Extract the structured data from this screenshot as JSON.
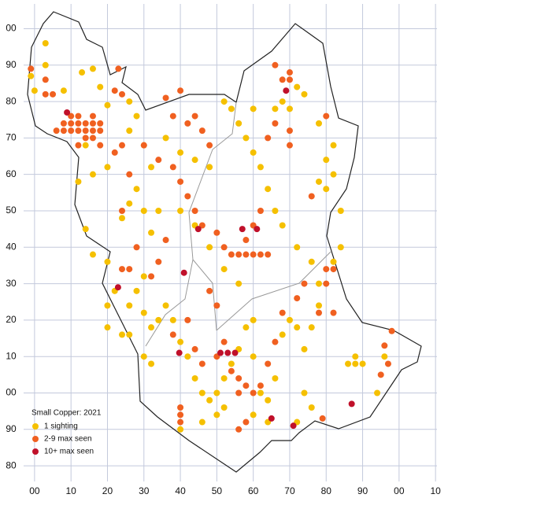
{
  "chart_data": {
    "type": "scatter",
    "title": "Small Copper:  2021",
    "xlim": [
      -3,
      110.4
    ],
    "ylim": [
      75.7,
      206.8
    ],
    "xticks": [
      {
        "value": 0,
        "label": "00"
      },
      10,
      20,
      30,
      40,
      50,
      60,
      70,
      80,
      90,
      {
        "value": 100,
        "label": "00"
      },
      {
        "value": 110,
        "label": "10"
      }
    ],
    "yticks": [
      80,
      90,
      {
        "value": 100,
        "label": "00"
      },
      {
        "value": 110,
        "label": "10"
      },
      {
        "value": 120,
        "label": "20"
      },
      {
        "value": 130,
        "label": "30"
      },
      {
        "value": 140,
        "label": "40"
      },
      {
        "value": 150,
        "label": "50"
      },
      {
        "value": 160,
        "label": "60"
      },
      {
        "value": 170,
        "label": "70"
      },
      {
        "value": 180,
        "label": "80"
      },
      {
        "value": 190,
        "label": "90"
      },
      {
        "value": 200,
        "label": "00"
      }
    ],
    "grid": true,
    "series": [
      {
        "name": "1 sighting",
        "color": "#f5c000",
        "x": [
          -1,
          3,
          3,
          0,
          8,
          13,
          16,
          18,
          20,
          26,
          28,
          26,
          30,
          32,
          28,
          26,
          24,
          30,
          32,
          34,
          30,
          28,
          26,
          30,
          32,
          34,
          36,
          38,
          40,
          42,
          44,
          46,
          48,
          50,
          52,
          54,
          56,
          58,
          60,
          60,
          62,
          64,
          66,
          68,
          70,
          72,
          74,
          76,
          78,
          78,
          76,
          72,
          68,
          66,
          64,
          62,
          60,
          58,
          56,
          54,
          52,
          60,
          66,
          68,
          70,
          72,
          74,
          78,
          80,
          82,
          80,
          82,
          78,
          84,
          84,
          82,
          86,
          88,
          90,
          88,
          96,
          94,
          74,
          76,
          72,
          64,
          60,
          52,
          50,
          46,
          40,
          30,
          32,
          24,
          20,
          22,
          14,
          16,
          20,
          12,
          14,
          16,
          20,
          40,
          44,
          48,
          52,
          56,
          36,
          40,
          44,
          48,
          20,
          26
        ],
        "y": [
          187,
          196,
          190,
          183,
          183,
          188,
          189,
          184,
          179,
          180,
          176,
          172,
          168,
          162,
          156,
          152,
          148,
          150,
          144,
          150,
          132,
          128,
          124,
          122,
          118,
          120,
          124,
          120,
          114,
          110,
          104,
          100,
          98,
          100,
          104,
          108,
          112,
          118,
          120,
          110,
          100,
          98,
          104,
          116,
          120,
          118,
          112,
          118,
          124,
          130,
          136,
          140,
          146,
          150,
          156,
          162,
          166,
          170,
          174,
          178,
          180,
          178,
          178,
          180,
          178,
          184,
          182,
          158,
          156,
          160,
          164,
          168,
          174,
          150,
          140,
          136,
          108,
          108,
          108,
          110,
          110,
          100,
          100,
          96,
          92,
          92,
          94,
          96,
          94,
          92,
          90,
          110,
          108,
          116,
          118,
          128,
          145,
          138,
          136,
          158,
          168,
          160,
          162,
          150,
          146,
          140,
          134,
          130,
          170,
          166,
          164,
          162,
          124,
          116
        ]
      },
      {
        "name": "2-9 max seen",
        "color": "#f06020",
        "x": [
          6,
          8,
          10,
          12,
          14,
          16,
          18,
          8,
          10,
          12,
          14,
          16,
          18,
          10,
          12,
          16,
          14,
          16,
          18,
          12,
          -1,
          3,
          3,
          5,
          23,
          22,
          24,
          36,
          40,
          38,
          42,
          44,
          46,
          48,
          30,
          34,
          38,
          40,
          42,
          44,
          46,
          50,
          52,
          54,
          56,
          58,
          60,
          62,
          64,
          58,
          60,
          62,
          48,
          50,
          52,
          50,
          46,
          44,
          38,
          42,
          54,
          56,
          58,
          56,
          60,
          62,
          64,
          66,
          68,
          72,
          74,
          80,
          82,
          80,
          78,
          82,
          80,
          70,
          70,
          66,
          64,
          68,
          70,
          70,
          66,
          40,
          40,
          40,
          56,
          58,
          79,
          95,
          97,
          98,
          96,
          24,
          28,
          32,
          24,
          26,
          22,
          24,
          26,
          34,
          36,
          76
        ],
        "y": [
          172,
          172,
          172,
          172,
          172,
          172,
          172,
          174,
          174,
          174,
          174,
          174,
          174,
          176,
          176,
          176,
          170,
          170,
          168,
          168,
          189,
          186,
          182,
          182,
          189,
          183,
          182,
          181,
          183,
          176,
          174,
          176,
          172,
          168,
          168,
          164,
          162,
          158,
          154,
          150,
          146,
          144,
          140,
          138,
          138,
          138,
          138,
          138,
          138,
          142,
          146,
          150,
          128,
          124,
          114,
          110,
          108,
          112,
          116,
          120,
          106,
          104,
          102,
          100,
          100,
          102,
          108,
          114,
          122,
          126,
          130,
          134,
          134,
          130,
          122,
          122,
          176,
          172,
          168,
          174,
          170,
          186,
          186,
          188,
          190,
          96,
          94,
          92,
          90,
          92,
          93,
          105,
          108,
          117,
          113,
          150,
          140,
          132,
          134,
          134,
          166,
          168,
          160,
          136,
          142,
          154
        ]
      },
      {
        "name": "10+ max seen",
        "color": "#c0102a",
        "x": [
          8.9,
          22.9,
          41,
          44.9,
          57,
          61,
          69,
          39.7,
          51,
          53,
          55,
          65,
          71,
          87
        ],
        "y": [
          177,
          129,
          133,
          145,
          145,
          145,
          183,
          111,
          111,
          111,
          111,
          93,
          91,
          97
        ]
      }
    ]
  }
}
